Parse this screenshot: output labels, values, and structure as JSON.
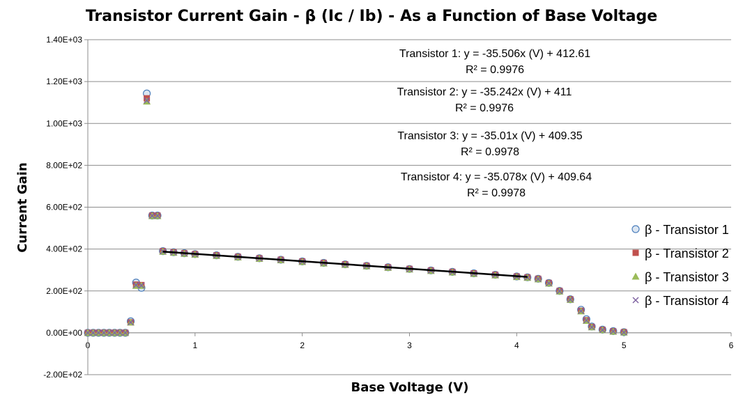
{
  "chart_data": {
    "type": "scatter",
    "title": "Transistor Current Gain - β (Ic / Ib) - As a Function of Base Voltage",
    "xlabel": "Base Voltage (V)",
    "ylabel": "Current Gain",
    "xlim": [
      0,
      6
    ],
    "ylim": [
      -200,
      1400
    ],
    "x_ticks": [
      0,
      1,
      2,
      3,
      4,
      5,
      6
    ],
    "y_ticks": [
      -200,
      0,
      200,
      400,
      600,
      800,
      1000,
      1200,
      1400
    ],
    "y_tick_labels": [
      "-2.00E+02",
      "0.00E+00",
      "2.00E+02",
      "4.00E+02",
      "6.00E+02",
      "8.00E+02",
      "1.00E+03",
      "1.20E+03",
      "1.40E+03"
    ],
    "grid": "horizontal",
    "legend": "right",
    "series": [
      {
        "name": "β - Transistor 1",
        "marker": "circle",
        "color": "#4F81BD",
        "x": [
          0.0,
          0.05,
          0.1,
          0.15,
          0.2,
          0.25,
          0.3,
          0.35,
          0.4,
          0.45,
          0.5,
          0.55,
          0.6,
          0.65,
          0.7,
          0.8,
          0.9,
          1.0,
          1.2,
          1.4,
          1.6,
          1.8,
          2.0,
          2.2,
          2.4,
          2.6,
          2.8,
          3.0,
          3.2,
          3.4,
          3.6,
          3.8,
          4.0,
          4.1,
          4.2,
          4.3,
          4.4,
          4.5,
          4.6,
          4.65,
          4.7,
          4.8,
          4.9,
          5.0
        ],
        "y": [
          0,
          0,
          0,
          0,
          0,
          0,
          0,
          0,
          55,
          240,
          215,
          1143,
          560,
          560,
          390,
          385,
          380,
          376,
          370,
          363,
          356,
          349,
          341,
          334,
          327,
          320,
          313,
          305,
          298,
          291,
          284,
          277,
          269,
          265,
          258,
          238,
          200,
          160,
          110,
          65,
          30,
          15,
          8,
          3
        ]
      },
      {
        "name": "β - Transistor 2",
        "marker": "square",
        "color": "#C0504D",
        "x": [
          0.0,
          0.05,
          0.1,
          0.15,
          0.2,
          0.25,
          0.3,
          0.35,
          0.4,
          0.45,
          0.5,
          0.55,
          0.6,
          0.65,
          0.7,
          0.8,
          0.9,
          1.0,
          1.2,
          1.4,
          1.6,
          1.8,
          2.0,
          2.2,
          2.4,
          2.6,
          2.8,
          3.0,
          3.2,
          3.4,
          3.6,
          3.8,
          4.0,
          4.1,
          4.2,
          4.3,
          4.4,
          4.5,
          4.6,
          4.65,
          4.7,
          4.8,
          4.9,
          5.0
        ],
        "y": [
          0,
          0,
          0,
          0,
          0,
          0,
          0,
          0,
          50,
          230,
          228,
          1120,
          560,
          560,
          390,
          385,
          380,
          376,
          370,
          363,
          356,
          349,
          341,
          334,
          327,
          320,
          313,
          305,
          298,
          291,
          284,
          277,
          269,
          265,
          258,
          238,
          200,
          160,
          105,
          60,
          28,
          14,
          7,
          3
        ]
      },
      {
        "name": "β - Transistor 3",
        "marker": "triangle",
        "color": "#9BBB59",
        "x": [
          0.0,
          0.05,
          0.1,
          0.15,
          0.2,
          0.25,
          0.3,
          0.35,
          0.4,
          0.45,
          0.5,
          0.55,
          0.6,
          0.65,
          0.7,
          0.8,
          0.9,
          1.0,
          1.2,
          1.4,
          1.6,
          1.8,
          2.0,
          2.2,
          2.4,
          2.6,
          2.8,
          3.0,
          3.2,
          3.4,
          3.6,
          3.8,
          4.0,
          4.1,
          4.2,
          4.3,
          4.4,
          4.5,
          4.6,
          4.65,
          4.7,
          4.8,
          4.9,
          5.0
        ],
        "y": [
          0,
          0,
          0,
          0,
          0,
          0,
          0,
          0,
          50,
          225,
          225,
          1105,
          558,
          558,
          388,
          383,
          378,
          374,
          368,
          361,
          354,
          347,
          339,
          332,
          325,
          318,
          311,
          303,
          296,
          289,
          282,
          275,
          267,
          263,
          256,
          236,
          198,
          158,
          103,
          58,
          27,
          13,
          6,
          2
        ]
      },
      {
        "name": "β - Transistor 4",
        "marker": "x",
        "color": "#8064A2",
        "x": [
          0.0,
          0.05,
          0.1,
          0.15,
          0.2,
          0.25,
          0.3,
          0.35,
          0.4,
          0.45,
          0.5,
          0.55,
          0.6,
          0.65,
          0.7,
          0.8,
          0.9,
          1.0,
          1.2,
          1.4,
          1.6,
          1.8,
          2.0,
          2.2,
          2.4,
          2.6,
          2.8,
          3.0,
          3.2,
          3.4,
          3.6,
          3.8,
          4.0,
          4.1,
          4.2,
          4.3,
          4.4,
          4.5,
          4.6,
          4.65,
          4.7,
          4.8,
          4.9,
          5.0
        ],
        "y": [
          0,
          0,
          0,
          0,
          0,
          0,
          0,
          0,
          50,
          228,
          226,
          1110,
          559,
          559,
          389,
          384,
          379,
          375,
          369,
          362,
          355,
          348,
          340,
          333,
          326,
          319,
          312,
          304,
          297,
          290,
          283,
          276,
          268,
          264,
          257,
          237,
          199,
          159,
          104,
          59,
          27,
          13,
          7,
          2
        ]
      }
    ],
    "trendline": {
      "x": [
        0.7,
        4.1
      ],
      "y": [
        387.7,
        267.0
      ],
      "color": "#000000"
    },
    "annotations": [
      {
        "line1": "Transistor 1: y = -35.506x (V) + 412.61",
        "line2": "R² = 0.9976"
      },
      {
        "line1": "Transistor 2: y = -35.242x (V) + 411",
        "line2": "R² = 0.9976"
      },
      {
        "line1": "Transistor 3: y = -35.01x (V) + 409.35",
        "line2": "R² = 0.9978"
      },
      {
        "line1": "Transistor 4: y = -35.078x (V) + 409.64",
        "line2": "R² = 0.9978"
      }
    ]
  }
}
